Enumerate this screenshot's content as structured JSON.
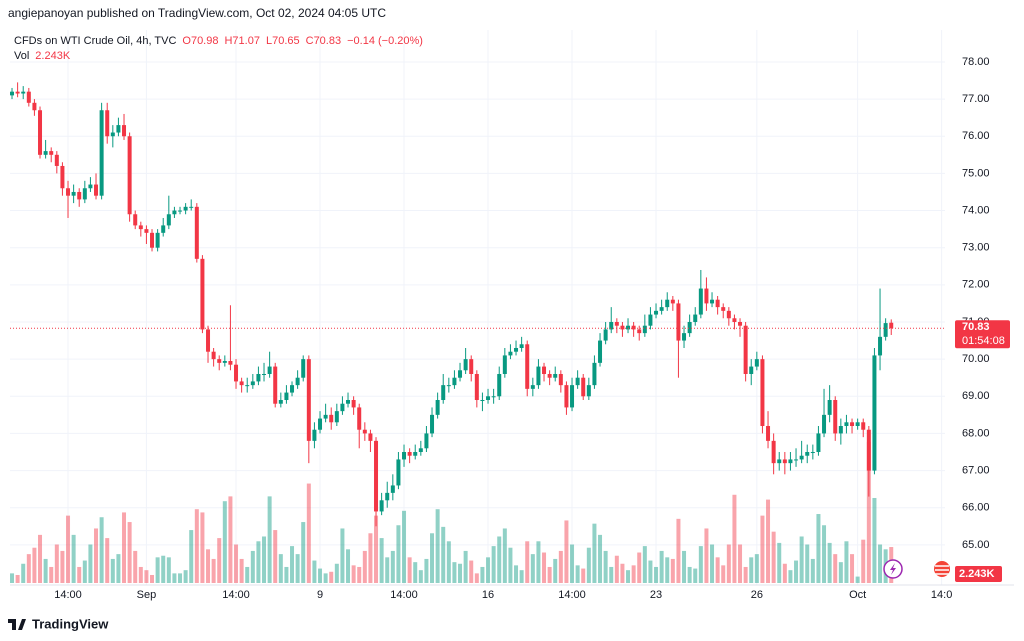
{
  "header": "angiepanoyan published on TradingView.com, Oct 02, 2024 04:05 UTC",
  "footer": "TradingView",
  "chart_data": {
    "type": "candlestick",
    "legend": {
      "symbol": "CFDs on WTI Crude Oil, 4h, TVC",
      "open": "O70.98",
      "high": "H71.07",
      "low": "L70.65",
      "close": "C70.83",
      "change": "−0.14 (−0.20%)",
      "vol_name": "Vol",
      "vol": "2.243K"
    },
    "countdown": "01:54:08",
    "up_color": "#089981",
    "down_color": "#f23645",
    "ylim": [
      63.92,
      78.86
    ],
    "yticks": [
      {
        "value": 65,
        "label": "65.00"
      },
      {
        "value": 66,
        "label": "66.00"
      },
      {
        "value": 67,
        "label": "67.00"
      },
      {
        "value": 68,
        "label": "68.00"
      },
      {
        "value": 69,
        "label": "69.00"
      },
      {
        "value": 70,
        "label": "70.00"
      },
      {
        "value": 71,
        "label": "71.00"
      },
      {
        "value": 72,
        "label": "72.00"
      },
      {
        "value": 73,
        "label": "73.00"
      },
      {
        "value": 74,
        "label": "74.00"
      },
      {
        "value": 75,
        "label": "75.00"
      },
      {
        "value": 76,
        "label": "76.00"
      },
      {
        "value": 77,
        "label": "77.00"
      },
      {
        "value": 78,
        "label": "78.00"
      }
    ],
    "xlim": [
      -0.36,
      166.6
    ],
    "xticks": [
      {
        "value": 10,
        "label": "14:00"
      },
      {
        "value": 24,
        "label": "Sep"
      },
      {
        "value": 40,
        "label": "14:00"
      },
      {
        "value": 55,
        "label": "9"
      },
      {
        "value": 70,
        "label": "14:00"
      },
      {
        "value": 85,
        "label": "16"
      },
      {
        "value": 100,
        "label": "14:00"
      },
      {
        "value": 115,
        "label": "23"
      },
      {
        "value": 133,
        "label": "26"
      },
      {
        "value": 151,
        "label": "Oct"
      },
      {
        "value": 166,
        "label": "14:0"
      }
    ],
    "y2lim": [
      0,
      34.6
    ],
    "grid": true,
    "open": [
      77.1,
      77.2,
      77.15,
      77.2,
      76.9,
      76.7,
      75.5,
      75.6,
      75.5,
      75.2,
      74.6,
      74.4,
      74.5,
      74.3,
      74.6,
      74.7,
      74.4,
      76.7,
      76.0,
      76.1,
      76.3,
      76.0,
      73.9,
      73.6,
      73.5,
      73.4,
      73.0,
      73.4,
      73.6,
      73.9,
      74.0,
      74.0,
      74.1,
      74.1,
      72.7,
      70.8,
      70.2,
      70.0,
      69.9,
      69.95,
      69.85,
      69.4,
      69.3,
      69.3,
      69.4,
      69.6,
      69.6,
      69.8,
      68.8,
      68.9,
      69.1,
      69.3,
      69.5,
      70.0,
      67.8,
      68.1,
      68.4,
      68.5,
      68.3,
      68.6,
      68.8,
      68.9,
      68.7,
      68.1,
      68.0,
      67.8,
      65.9,
      66.2,
      66.4,
      66.6,
      67.3,
      67.5,
      67.4,
      67.5,
      67.6,
      68.0,
      68.5,
      68.9,
      69.3,
      69.3,
      69.5,
      69.7,
      70.0,
      69.6,
      68.9,
      68.9,
      69.0,
      69.0,
      69.6,
      70.1,
      70.2,
      70.3,
      70.4,
      69.2,
      69.3,
      69.8,
      69.6,
      69.5,
      69.6,
      69.3,
      68.7,
      69.3,
      69.5,
      69.0,
      69.3,
      69.9,
      70.5,
      70.8,
      71.0,
      70.9,
      70.8,
      70.9,
      70.8,
      70.7,
      70.9,
      71.2,
      71.3,
      71.4,
      71.6,
      71.5,
      70.5,
      70.7,
      71.0,
      71.2,
      71.9,
      71.5,
      71.6,
      71.4,
      71.3,
      71.1,
      71.0,
      70.9,
      69.6,
      69.8,
      70.0,
      68.2,
      67.8,
      67.2,
      67.3,
      67.2,
      67.3,
      67.3,
      67.4,
      67.5,
      67.5,
      68.0,
      68.5,
      68.9,
      68.0,
      68.2,
      68.3,
      68.2,
      68.3,
      68.1,
      67.0,
      70.1,
      70.6,
      70.98
    ],
    "high": [
      77.3,
      77.45,
      77.35,
      77.3,
      77.0,
      76.8,
      75.9,
      75.7,
      75.6,
      75.3,
      74.8,
      74.7,
      74.6,
      74.8,
      74.9,
      75.0,
      76.9,
      76.9,
      76.3,
      76.5,
      76.6,
      76.1,
      74.0,
      73.7,
      73.6,
      73.5,
      73.5,
      73.8,
      74.4,
      74.1,
      74.1,
      74.2,
      74.3,
      74.2,
      72.8,
      70.9,
      70.3,
      70.1,
      70.1,
      71.45,
      70.0,
      69.5,
      69.5,
      69.6,
      69.8,
      69.9,
      70.2,
      69.9,
      69.1,
      69.3,
      69.4,
      69.7,
      70.1,
      70.1,
      68.3,
      68.6,
      68.8,
      68.7,
      68.8,
      69.0,
      69.1,
      69.0,
      68.8,
      68.3,
      68.1,
      67.9,
      66.4,
      66.7,
      66.9,
      67.5,
      67.7,
      67.6,
      67.7,
      67.8,
      68.2,
      68.7,
      69.1,
      69.6,
      69.5,
      69.7,
      69.9,
      70.3,
      70.1,
      69.7,
      69.1,
      69.2,
      69.2,
      69.8,
      70.3,
      70.4,
      70.5,
      70.6,
      70.5,
      69.5,
      70.0,
      69.9,
      69.7,
      69.8,
      69.7,
      69.4,
      69.5,
      69.7,
      69.6,
      69.5,
      70.1,
      70.7,
      71.0,
      71.4,
      71.1,
      71.0,
      71.1,
      71.0,
      70.9,
      71.2,
      71.4,
      71.5,
      71.6,
      71.8,
      71.7,
      71.6,
      70.9,
      71.2,
      71.4,
      72.4,
      72.2,
      71.8,
      71.7,
      71.5,
      71.4,
      71.2,
      71.1,
      71.0,
      70.0,
      70.2,
      70.1,
      68.6,
      68.0,
      67.5,
      67.5,
      67.5,
      67.6,
      67.8,
      67.7,
      67.7,
      68.2,
      69.2,
      69.3,
      69.0,
      68.4,
      68.5,
      68.4,
      68.4,
      68.4,
      68.2,
      70.3,
      71.9,
      71.1,
      71.07
    ],
    "low": [
      77.0,
      77.05,
      77.0,
      76.8,
      76.55,
      75.4,
      75.4,
      75.3,
      75.0,
      74.4,
      73.8,
      74.2,
      74.1,
      74.2,
      74.5,
      74.3,
      74.3,
      75.8,
      75.7,
      76.0,
      75.9,
      73.7,
      73.5,
      73.3,
      73.1,
      72.9,
      72.9,
      73.3,
      73.5,
      73.8,
      73.9,
      73.9,
      74.0,
      72.6,
      70.7,
      69.9,
      69.8,
      69.7,
      69.8,
      69.7,
      69.2,
      69.1,
      69.1,
      69.2,
      69.3,
      69.4,
      69.5,
      68.7,
      68.7,
      68.8,
      69.0,
      69.2,
      69.4,
      67.2,
      67.6,
      68.0,
      68.3,
      68.1,
      68.2,
      68.5,
      68.7,
      68.5,
      67.6,
      67.8,
      67.5,
      65.5,
      65.8,
      66.0,
      66.2,
      66.5,
      67.1,
      67.2,
      67.3,
      67.4,
      67.5,
      67.9,
      68.4,
      68.8,
      69.1,
      69.2,
      69.4,
      69.6,
      69.4,
      68.7,
      68.6,
      68.8,
      68.8,
      68.9,
      69.5,
      70.0,
      70.1,
      70.2,
      69.0,
      69.0,
      69.2,
      69.4,
      69.3,
      69.4,
      69.1,
      68.5,
      68.6,
      69.2,
      68.9,
      68.9,
      69.2,
      69.8,
      70.4,
      70.7,
      70.7,
      70.6,
      70.7,
      70.6,
      70.5,
      70.6,
      70.8,
      71.1,
      71.2,
      71.3,
      71.3,
      69.5,
      70.3,
      70.6,
      70.9,
      71.1,
      71.3,
      71.4,
      71.2,
      71.1,
      70.9,
      70.8,
      70.6,
      69.4,
      69.3,
      69.7,
      68.0,
      67.6,
      66.9,
      67.0,
      66.9,
      67.0,
      67.1,
      67.2,
      67.2,
      67.3,
      67.4,
      67.9,
      68.3,
      67.8,
      67.7,
      68.0,
      68.0,
      68.1,
      67.9,
      66.3,
      66.9,
      69.7,
      70.5,
      70.65
    ],
    "close": [
      77.2,
      77.15,
      77.2,
      76.9,
      76.7,
      75.5,
      75.6,
      75.5,
      75.2,
      74.6,
      74.4,
      74.5,
      74.3,
      74.6,
      74.7,
      74.4,
      76.7,
      76.0,
      76.1,
      76.3,
      76.0,
      73.9,
      73.6,
      73.5,
      73.4,
      73.0,
      73.4,
      73.6,
      73.9,
      74.0,
      74.0,
      74.1,
      74.1,
      72.7,
      70.8,
      70.2,
      70.0,
      69.9,
      69.95,
      69.85,
      69.4,
      69.3,
      69.3,
      69.4,
      69.6,
      69.6,
      69.8,
      68.8,
      68.9,
      69.1,
      69.3,
      69.5,
      70.0,
      67.8,
      68.1,
      68.4,
      68.5,
      68.3,
      68.6,
      68.8,
      68.9,
      68.7,
      68.1,
      68.0,
      67.8,
      65.9,
      66.2,
      66.4,
      66.6,
      67.3,
      67.5,
      67.4,
      67.5,
      67.6,
      68.0,
      68.5,
      68.9,
      69.3,
      69.3,
      69.5,
      69.7,
      70.0,
      69.6,
      68.9,
      68.9,
      69.0,
      69.0,
      69.6,
      70.1,
      70.2,
      70.3,
      70.4,
      69.2,
      69.3,
      69.8,
      69.6,
      69.5,
      69.6,
      69.3,
      68.7,
      69.3,
      69.5,
      69.0,
      69.3,
      69.9,
      70.5,
      70.8,
      71.0,
      70.9,
      70.8,
      70.9,
      70.8,
      70.7,
      70.9,
      71.2,
      71.3,
      71.4,
      71.6,
      71.5,
      70.5,
      70.7,
      71.0,
      71.2,
      71.9,
      71.5,
      71.6,
      71.4,
      71.3,
      71.1,
      71.0,
      70.9,
      69.6,
      69.8,
      70.0,
      68.2,
      67.8,
      67.2,
      67.3,
      67.2,
      67.3,
      67.3,
      67.4,
      67.5,
      67.5,
      68.0,
      68.5,
      68.9,
      68.0,
      68.2,
      68.3,
      68.2,
      68.3,
      68.1,
      67.0,
      70.1,
      70.6,
      70.97,
      70.83
    ],
    "volume": [
      0.6,
      0.5,
      1.2,
      1.8,
      2.2,
      3.0,
      1.5,
      1.0,
      2.4,
      2.0,
      4.2,
      3.0,
      1.0,
      1.4,
      2.4,
      3.4,
      4.1,
      2.8,
      1.5,
      1.8,
      4.4,
      3.8,
      2.0,
      1.0,
      0.8,
      0.5,
      1.6,
      1.7,
      1.6,
      0.6,
      0.6,
      0.8,
      3.3,
      4.6,
      4.4,
      2.1,
      1.5,
      2.8,
      5.1,
      5.4,
      2.4,
      1.5,
      1.0,
      2.0,
      2.6,
      2.9,
      5.4,
      3.3,
      1.8,
      1.0,
      2.3,
      1.8,
      3.8,
      6.2,
      1.4,
      0.9,
      0.6,
      0.7,
      1.2,
      3.4,
      2.1,
      1.1,
      1.0,
      2.0,
      3.1,
      4.2,
      2.8,
      1.6,
      2.0,
      3.6,
      4.5,
      1.6,
      1.3,
      0.8,
      1.5,
      3.1,
      4.6,
      3.5,
      2.6,
      1.3,
      1.2,
      2.0,
      1.4,
      0.6,
      1.0,
      1.6,
      2.3,
      2.9,
      3.4,
      2.2,
      1.1,
      0.8,
      2.6,
      1.8,
      2.6,
      1.9,
      1.0,
      1.5,
      2.0,
      3.9,
      2.4,
      1.1,
      0.9,
      2.2,
      3.7,
      3.0,
      2.0,
      1.0,
      1.7,
      1.2,
      0.8,
      1.1,
      1.9,
      2.3,
      1.4,
      1.0,
      2.0,
      1.6,
      1.5,
      4.0,
      2.0,
      1.0,
      0.9,
      2.3,
      3.4,
      2.4,
      1.6,
      1.1,
      2.4,
      5.5,
      2.4,
      1.0,
      1.6,
      1.8,
      4.2,
      5.2,
      3.2,
      2.5,
      1.2,
      0.8,
      1.4,
      2.9,
      2.4,
      1.5,
      4.3,
      3.6,
      2.5,
      1.8,
      1.3,
      2.6,
      1.8,
      0.4,
      2.7,
      8.8,
      5.3,
      2.4,
      2.1,
      2.243
    ]
  }
}
